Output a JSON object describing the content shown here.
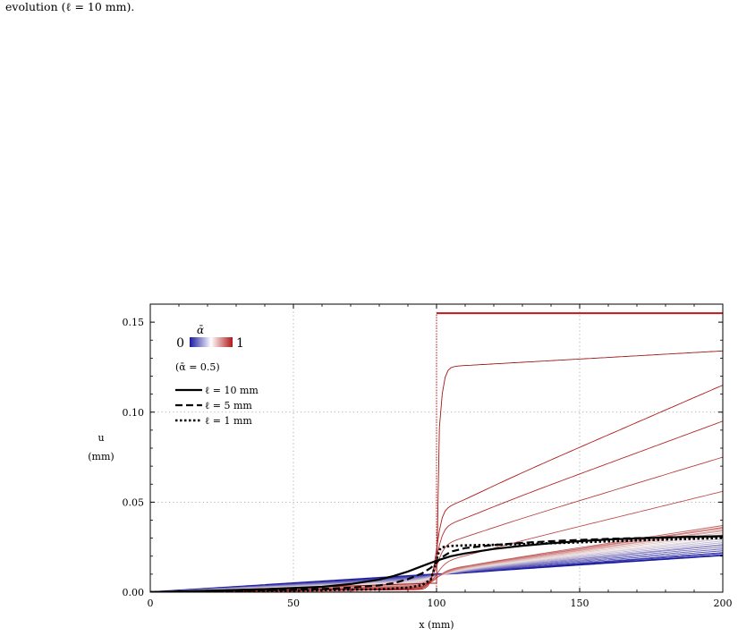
{
  "caption": "evolution (ℓ = 10 mm).",
  "chart_data": {
    "type": "line",
    "xlabel": "x (mm)",
    "ylabel": "u",
    "ylabel_unit": "(mm)",
    "xlim": [
      0,
      200
    ],
    "ylim": [
      0,
      0.16
    ],
    "x_ticks": [
      0,
      50,
      100,
      150,
      200
    ],
    "x_tick_labels": [
      "0",
      "50",
      "100",
      "150",
      "200"
    ],
    "y_ticks": [
      0,
      0.05,
      0.1,
      0.15
    ],
    "y_tick_labels": [
      "0.00",
      "0.05",
      "0.10",
      "0.15"
    ],
    "grid": "dotted at x = 50, 100, 150 and y = 0.05, 0.10",
    "colorbar": {
      "title": "ᾱ",
      "min_label": "0",
      "max_label": "1",
      "colors": [
        "#1a1aa0",
        "#ffffff",
        "#b01818"
      ]
    },
    "legend": {
      "placement": "top-left",
      "subtitle": "(ᾱ = 0.5)",
      "entries": [
        {
          "label": "ℓ = 10 mm",
          "style": "solid"
        },
        {
          "label": "ℓ = 5 mm",
          "style": "dashed"
        },
        {
          "label": "ℓ = 1 mm",
          "style": "dotted"
        }
      ]
    },
    "evolution_family": {
      "n_curves": 24,
      "x_step": 100,
      "alpha_range": [
        0,
        1
      ],
      "note_colors_by_alpha": true,
      "left_slope_at_alpha0": 0.0001,
      "step_heights": [
        0,
        0.0005,
        0.001,
        0.0015,
        0.002,
        0.0025,
        0.003,
        0.0035,
        0.004,
        0.0045,
        0.005,
        0.0055,
        0.006,
        0.0065,
        0.007,
        0.0075,
        0.008,
        0.0085,
        0.009,
        0.0095,
        0.0145,
        0.0245,
        0.0345,
        0.0445
      ],
      "plateau_right_values": [
        0.0205,
        0.0215,
        0.022,
        0.023,
        0.024,
        0.025,
        0.026,
        0.0265,
        0.0275,
        0.0285,
        0.0295,
        0.03,
        0.031,
        0.032,
        0.033,
        0.034,
        0.0345,
        0.0355,
        0.036,
        0.037,
        0.056,
        0.075,
        0.095,
        0.115
      ],
      "final_curve": {
        "x_jump": 100,
        "value_right": 0.155,
        "value_left": 0,
        "max_curve_right": 0.134
      }
    },
    "series": [
      {
        "name": "ℓ = 10 mm",
        "style": "solid",
        "x": [
          0,
          20,
          40,
          60,
          70,
          80,
          85,
          90,
          95,
          100,
          105,
          110,
          120,
          130,
          140,
          150,
          160,
          170,
          180,
          190,
          200
        ],
        "y": [
          0,
          0.0008,
          0.0017,
          0.003,
          0.0045,
          0.007,
          0.009,
          0.0115,
          0.0145,
          0.0175,
          0.02,
          0.0215,
          0.024,
          0.0258,
          0.0272,
          0.0283,
          0.0292,
          0.0299,
          0.0304,
          0.0308,
          0.0311
        ]
      },
      {
        "name": "ℓ = 5 mm",
        "style": "dashed",
        "x": [
          0,
          20,
          40,
          60,
          70,
          80,
          85,
          90,
          95,
          98,
          100,
          102,
          105,
          110,
          120,
          130,
          140,
          150,
          160,
          170,
          180,
          190,
          200
        ],
        "y": [
          0,
          0.0005,
          0.0011,
          0.0018,
          0.0025,
          0.0038,
          0.005,
          0.0072,
          0.0105,
          0.0135,
          0.0165,
          0.0195,
          0.0225,
          0.0245,
          0.0262,
          0.0274,
          0.0283,
          0.029,
          0.0296,
          0.03,
          0.0304,
          0.0307,
          0.0309
        ]
      },
      {
        "name": "ℓ = 1 mm",
        "style": "dotted",
        "x": [
          0,
          20,
          40,
          60,
          80,
          90,
          95,
          98,
          99,
          100,
          101,
          102,
          105,
          110,
          120,
          140,
          160,
          180,
          200
        ],
        "y": [
          0,
          0.0003,
          0.0007,
          0.0011,
          0.0016,
          0.0025,
          0.004,
          0.007,
          0.012,
          0.018,
          0.0235,
          0.025,
          0.0257,
          0.026,
          0.0263,
          0.0272,
          0.0282,
          0.0292,
          0.0301
        ]
      }
    ]
  }
}
